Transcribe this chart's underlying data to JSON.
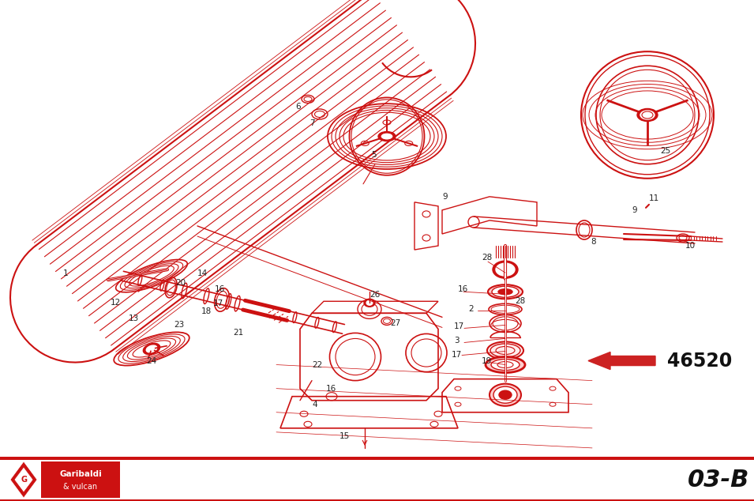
{
  "bg": "#ffffff",
  "dc": "#cc1111",
  "dc_fill": "#cc1111",
  "dc_light": "#dd3333",
  "black": "#111111",
  "gray_line": "#888888",
  "arrow_color": "#cc2222",
  "part_number": "46520",
  "page_label": "03-B",
  "logo_text1": "Garibaldi",
  "logo_text2": "& vulcan",
  "fig_w": 9.55,
  "fig_h": 6.34,
  "dpi": 100
}
